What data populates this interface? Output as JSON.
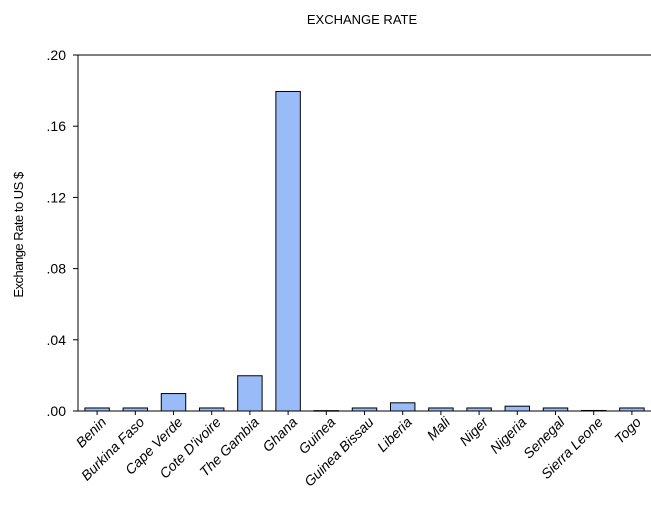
{
  "chart_data": {
    "type": "bar",
    "title": "EXCHANGE RATE",
    "ylabel": "Exchange Rate to US $",
    "xlabel": "",
    "ylim": [
      0,
      0.2
    ],
    "yticks": [
      0.0,
      0.04,
      0.08,
      0.12,
      0.16,
      0.2
    ],
    "ytick_labels": [
      ".00",
      ".04",
      ".08",
      ".12",
      ".16",
      ".20"
    ],
    "categories": [
      "Benin",
      "Burkina Faso",
      "Cape Verde",
      "Cote D'ivoire",
      "The Gambia",
      "Ghana",
      "Guinea",
      "Guinea Bissau",
      "Liberia",
      "Mali",
      "Niger",
      "Nigeria",
      "Senegal",
      "Sierra Leone",
      "Togo"
    ],
    "values": [
      0.0017,
      0.0017,
      0.0098,
      0.0017,
      0.0198,
      0.1795,
      0.0002,
      0.0017,
      0.0046,
      0.0017,
      0.0017,
      0.0027,
      0.0017,
      0.0003,
      0.0017
    ],
    "bar_color": "#99BBF7",
    "bar_edge_color": "#000000",
    "grid": false
  }
}
